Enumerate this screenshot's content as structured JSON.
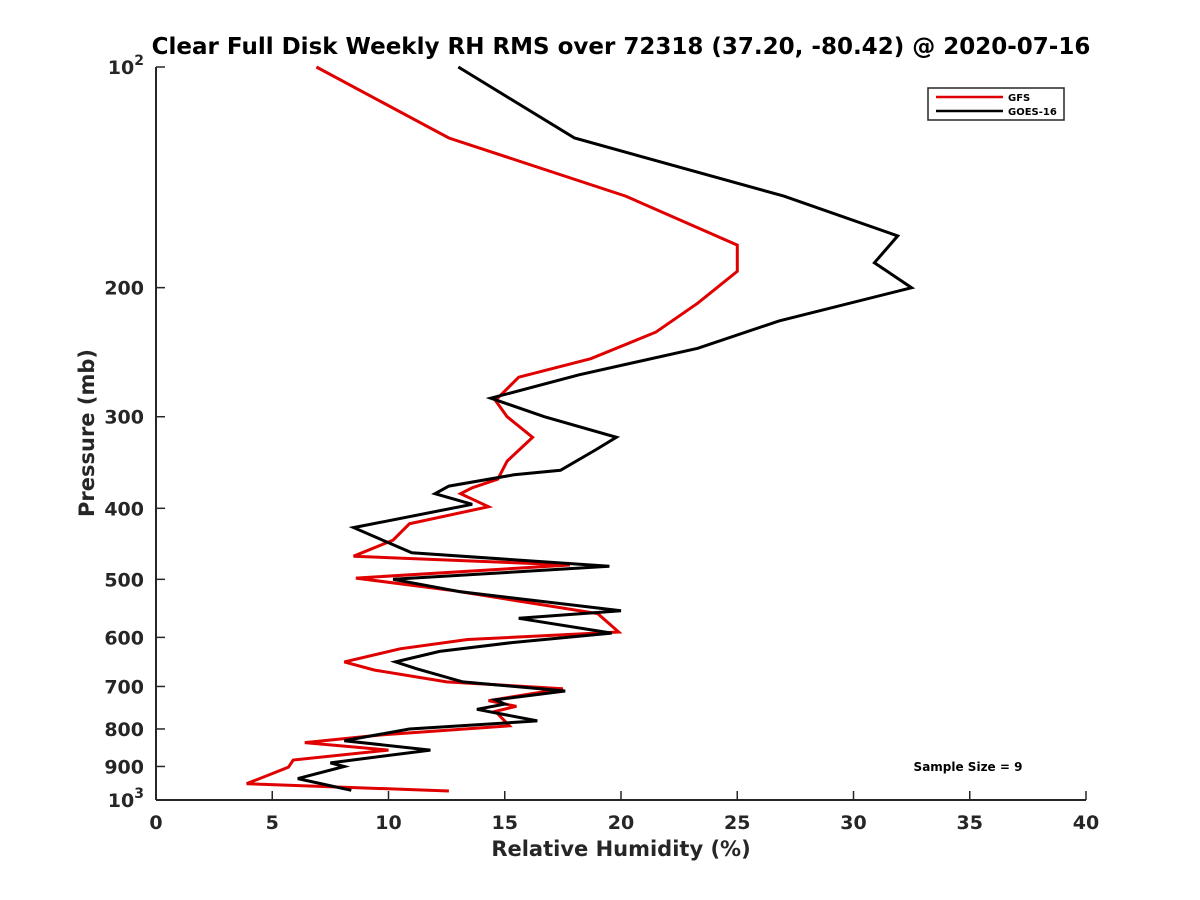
{
  "chart_data": {
    "type": "line",
    "title": "Clear Full Disk Weekly RH RMS over 72318 (37.20, -80.42) @ 2020-07-16",
    "xlabel": "Relative Humidity (%)",
    "ylabel": "Pressure (mb)",
    "xlim": [
      0,
      40
    ],
    "ylim": [
      100,
      1000
    ],
    "y_scale": "log",
    "y_reversed": true,
    "x_ticks": [
      0,
      5,
      10,
      15,
      20,
      25,
      30,
      35,
      40
    ],
    "y_ticks": [
      100,
      200,
      300,
      400,
      500,
      600,
      700,
      800,
      900,
      1000
    ],
    "y_tick_labels": [
      {
        "value": 100,
        "base": "10",
        "exp": "2"
      },
      {
        "value": 200,
        "base": "200",
        "exp": ""
      },
      {
        "value": 300,
        "base": "300",
        "exp": ""
      },
      {
        "value": 400,
        "base": "400",
        "exp": ""
      },
      {
        "value": 500,
        "base": "500",
        "exp": ""
      },
      {
        "value": 600,
        "base": "600",
        "exp": ""
      },
      {
        "value": 700,
        "base": "700",
        "exp": ""
      },
      {
        "value": 800,
        "base": "800",
        "exp": ""
      },
      {
        "value": 900,
        "base": "900",
        "exp": ""
      },
      {
        "value": 1000,
        "base": "10",
        "exp": "3"
      }
    ],
    "grid": false,
    "legend_position": "top-right",
    "annotation": "Sample Size = 9",
    "series": [
      {
        "name": "GFS",
        "color": "#e00000",
        "points": [
          [
            6.9,
            100
          ],
          [
            12.6,
            125
          ],
          [
            20.2,
            150
          ],
          [
            25.0,
            175
          ],
          [
            25.0,
            190
          ],
          [
            23.3,
            210
          ],
          [
            21.5,
            230
          ],
          [
            18.7,
            250
          ],
          [
            15.6,
            265
          ],
          [
            14.6,
            285
          ],
          [
            15.1,
            300
          ],
          [
            16.2,
            320
          ],
          [
            15.1,
            345
          ],
          [
            14.7,
            365
          ],
          [
            13.6,
            375
          ],
          [
            13.1,
            382
          ],
          [
            14.3,
            398
          ],
          [
            10.9,
            420
          ],
          [
            10.2,
            442
          ],
          [
            8.5,
            465
          ],
          [
            17.8,
            478
          ],
          [
            8.6,
            498
          ],
          [
            12.8,
            518
          ],
          [
            19.0,
            557
          ],
          [
            19.9,
            590
          ],
          [
            13.4,
            604
          ],
          [
            10.5,
            622
          ],
          [
            8.1,
            648
          ],
          [
            9.4,
            665
          ],
          [
            12.5,
            690
          ],
          [
            17.5,
            705
          ],
          [
            14.3,
            732
          ],
          [
            15.5,
            745
          ],
          [
            14.6,
            757
          ],
          [
            15.2,
            792
          ],
          [
            9.7,
            815
          ],
          [
            6.4,
            835
          ],
          [
            10.0,
            855
          ],
          [
            5.9,
            882
          ],
          [
            5.7,
            902
          ],
          [
            3.9,
            950
          ],
          [
            12.6,
            972
          ]
        ]
      },
      {
        "name": "GOES-16",
        "color": "#000000",
        "points": [
          [
            13.0,
            100
          ],
          [
            18.0,
            125
          ],
          [
            27.0,
            150
          ],
          [
            31.9,
            170
          ],
          [
            30.9,
            185
          ],
          [
            32.5,
            200
          ],
          [
            26.8,
            222
          ],
          [
            23.3,
            242
          ],
          [
            18.2,
            263
          ],
          [
            14.4,
            283
          ],
          [
            16.7,
            300
          ],
          [
            19.8,
            320
          ],
          [
            18.9,
            333
          ],
          [
            17.4,
            355
          ],
          [
            15.4,
            360
          ],
          [
            12.6,
            373
          ],
          [
            12.0,
            382
          ],
          [
            13.6,
            395
          ],
          [
            8.5,
            425
          ],
          [
            11.0,
            460
          ],
          [
            19.5,
            480
          ],
          [
            10.2,
            500
          ],
          [
            13.1,
            520
          ],
          [
            20.0,
            552
          ],
          [
            15.6,
            565
          ],
          [
            19.6,
            592
          ],
          [
            15.3,
            610
          ],
          [
            12.2,
            627
          ],
          [
            10.3,
            648
          ],
          [
            11.2,
            662
          ],
          [
            13.2,
            690
          ],
          [
            17.6,
            710
          ],
          [
            14.6,
            730
          ],
          [
            15.0,
            740
          ],
          [
            13.8,
            752
          ],
          [
            16.4,
            780
          ],
          [
            10.9,
            800
          ],
          [
            8.1,
            830
          ],
          [
            11.8,
            855
          ],
          [
            7.5,
            890
          ],
          [
            8.1,
            900
          ],
          [
            6.1,
            935
          ],
          [
            8.4,
            970
          ]
        ]
      }
    ]
  }
}
